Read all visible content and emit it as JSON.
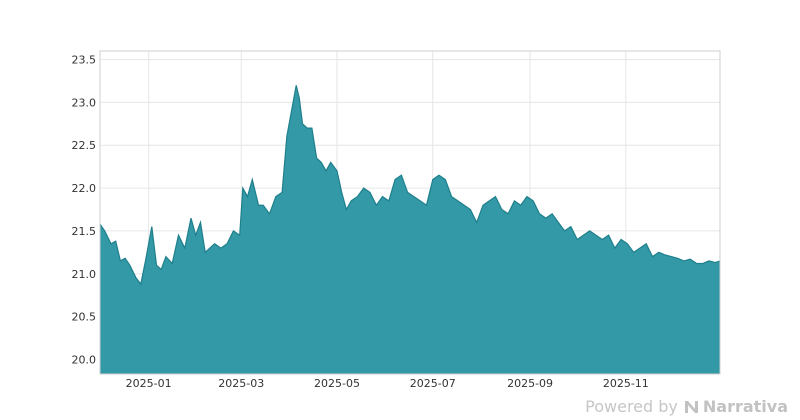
{
  "chart_data": {
    "type": "area",
    "x_start": "2024-12-01",
    "x_end": "2025-12-31",
    "xlim": [
      "2024-12-01",
      "2025-12-31"
    ],
    "ylim": [
      19.83,
      23.6
    ],
    "y_ticks": [
      20.0,
      20.5,
      21.0,
      21.5,
      22.0,
      22.5,
      23.0,
      23.5
    ],
    "y_tick_labels": [
      "20.0",
      "20.5",
      "21.0",
      "21.5",
      "22.0",
      "22.5",
      "23.0",
      "23.5"
    ],
    "x_ticks": [
      "2025-01-01",
      "2025-03-01",
      "2025-05-01",
      "2025-07-01",
      "2025-09-01",
      "2025-11-01"
    ],
    "x_tick_labels": [
      "2025-01",
      "2025-03",
      "2025-05",
      "2025-07",
      "2025-09",
      "2025-11"
    ],
    "grid": true,
    "title": "",
    "xlabel": "",
    "ylabel": "",
    "colors": {
      "fill": "#3399a6",
      "line": "#1f7f8c",
      "grid": "#e6e6e6",
      "axis": "#cfcfcf"
    },
    "series": [
      {
        "x": [
          "2024-12-01",
          "2024-12-04",
          "2024-12-08",
          "2024-12-11",
          "2024-12-14",
          "2024-12-17",
          "2024-12-20",
          "2024-12-24",
          "2024-12-27",
          "2024-12-30",
          "2025-01-03",
          "2025-01-06",
          "2025-01-09",
          "2025-01-12",
          "2025-01-16",
          "2025-01-20",
          "2025-01-24",
          "2025-01-28",
          "2025-01-31",
          "2025-02-03",
          "2025-02-06",
          "2025-02-09",
          "2025-02-12",
          "2025-02-16",
          "2025-02-20",
          "2025-02-24",
          "2025-02-28",
          "2025-03-02",
          "2025-03-05",
          "2025-03-08",
          "2025-03-12",
          "2025-03-15",
          "2025-03-19",
          "2025-03-23",
          "2025-03-27",
          "2025-03-30",
          "2025-04-02",
          "2025-04-05",
          "2025-04-07",
          "2025-04-09",
          "2025-04-12",
          "2025-04-15",
          "2025-04-18",
          "2025-04-21",
          "2025-04-24",
          "2025-04-27",
          "2025-05-01",
          "2025-05-04",
          "2025-05-07",
          "2025-05-10",
          "2025-05-14",
          "2025-05-18",
          "2025-05-22",
          "2025-05-26",
          "2025-05-30",
          "2025-06-03",
          "2025-06-07",
          "2025-06-11",
          "2025-06-15",
          "2025-06-19",
          "2025-06-23",
          "2025-06-27",
          "2025-07-01",
          "2025-07-05",
          "2025-07-09",
          "2025-07-13",
          "2025-07-17",
          "2025-07-21",
          "2025-07-25",
          "2025-07-29",
          "2025-08-02",
          "2025-08-06",
          "2025-08-10",
          "2025-08-14",
          "2025-08-18",
          "2025-08-22",
          "2025-08-26",
          "2025-08-30",
          "2025-09-03",
          "2025-09-07",
          "2025-09-11",
          "2025-09-15",
          "2025-09-19",
          "2025-09-23",
          "2025-09-27",
          "2025-10-01",
          "2025-10-05",
          "2025-10-09",
          "2025-10-13",
          "2025-10-17",
          "2025-10-21",
          "2025-10-25",
          "2025-10-29",
          "2025-11-02",
          "2025-11-06",
          "2025-11-10",
          "2025-11-14",
          "2025-11-18",
          "2025-11-22",
          "2025-11-26",
          "2025-11-30",
          "2025-12-04",
          "2025-12-08",
          "2025-12-12",
          "2025-12-16",
          "2025-12-20",
          "2025-12-24",
          "2025-12-28",
          "2025-12-31"
        ],
        "values": [
          21.58,
          21.5,
          21.35,
          21.38,
          21.15,
          21.18,
          21.1,
          20.95,
          20.88,
          21.15,
          21.55,
          21.1,
          21.05,
          21.2,
          21.12,
          21.45,
          21.3,
          21.65,
          21.45,
          21.6,
          21.25,
          21.3,
          21.35,
          21.3,
          21.35,
          21.5,
          21.45,
          22.0,
          21.9,
          22.1,
          21.8,
          21.8,
          21.7,
          21.9,
          21.95,
          22.6,
          22.9,
          23.2,
          23.05,
          22.75,
          22.7,
          22.7,
          22.35,
          22.3,
          22.2,
          22.3,
          22.2,
          21.95,
          21.75,
          21.85,
          21.9,
          22.0,
          21.95,
          21.8,
          21.9,
          21.85,
          22.1,
          22.15,
          21.95,
          21.9,
          21.85,
          21.8,
          22.1,
          22.15,
          22.1,
          21.9,
          21.85,
          21.8,
          21.75,
          21.6,
          21.8,
          21.85,
          21.9,
          21.75,
          21.7,
          21.85,
          21.8,
          21.9,
          21.85,
          21.7,
          21.65,
          21.7,
          21.6,
          21.5,
          21.55,
          21.4,
          21.45,
          21.5,
          21.45,
          21.4,
          21.45,
          21.3,
          21.4,
          21.35,
          21.25,
          21.3,
          21.35,
          21.2,
          21.25,
          21.22,
          21.2,
          21.18,
          21.15,
          21.17,
          21.12,
          21.12,
          21.15,
          21.13,
          21.15
        ]
      }
    ]
  },
  "footer": {
    "powered_by": "Powered by",
    "brand": "Narrativa",
    "logo_icon": "narrativa-logo-icon"
  }
}
